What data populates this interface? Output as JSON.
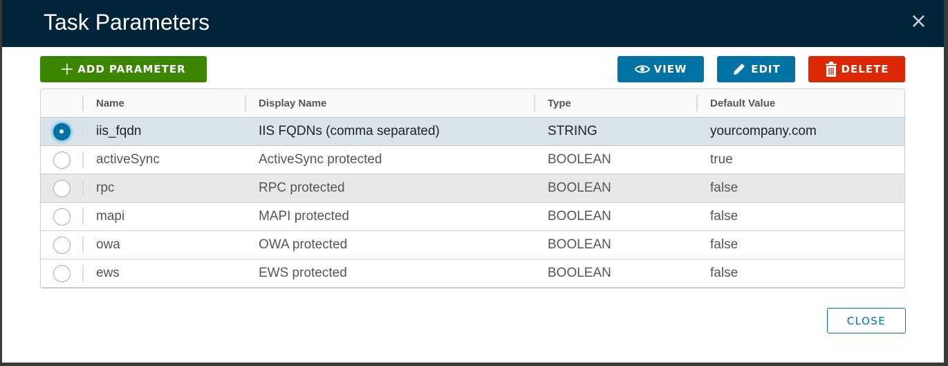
{
  "dialog": {
    "title": "Task Parameters",
    "close_icon": "×"
  },
  "toolbar": {
    "add": "ADD PARAMETER",
    "view": "VIEW",
    "edit": "EDIT",
    "delete": "DELETE"
  },
  "colors": {
    "header": "#00253a",
    "add": "#3c8500",
    "primary": "#0072a3",
    "danger": "#dc2800",
    "selected_row": "#d9e4ea"
  },
  "table": {
    "columns": [
      "Name",
      "Display Name",
      "Type",
      "Default Value"
    ],
    "rows": [
      {
        "name": "iis_fqdn",
        "display": "IIS FQDNs (comma separated)",
        "type": "STRING",
        "default": "yourcompany.com",
        "selected": true
      },
      {
        "name": "activeSync",
        "display": "ActiveSync protected",
        "type": "BOOLEAN",
        "default": "true",
        "selected": false
      },
      {
        "name": "rpc",
        "display": "RPC protected",
        "type": "BOOLEAN",
        "default": "false",
        "selected": false
      },
      {
        "name": "mapi",
        "display": "MAPI protected",
        "type": "BOOLEAN",
        "default": "false",
        "selected": false
      },
      {
        "name": "owa",
        "display": "OWA protected",
        "type": "BOOLEAN",
        "default": "false",
        "selected": false
      },
      {
        "name": "ews",
        "display": "EWS protected",
        "type": "BOOLEAN",
        "default": "false",
        "selected": false
      }
    ]
  },
  "footer": {
    "close": "CLOSE"
  }
}
